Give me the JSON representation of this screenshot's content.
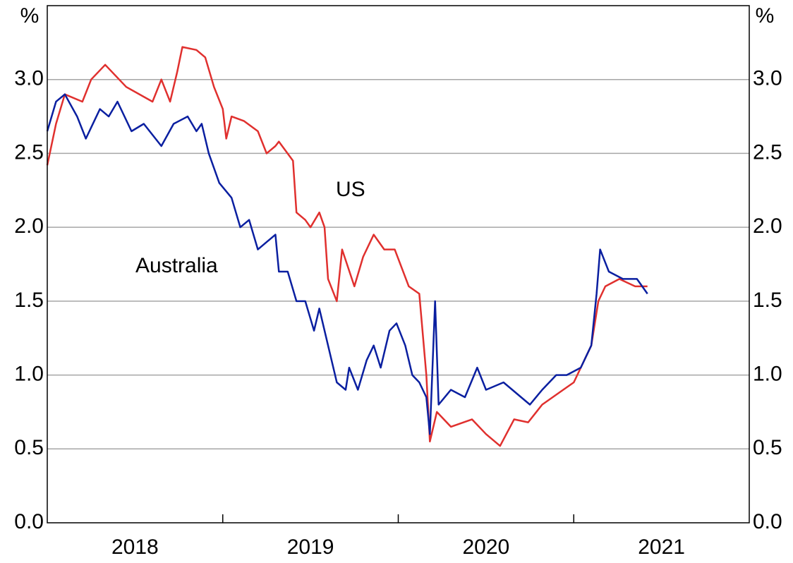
{
  "chart_data": {
    "type": "line",
    "y_unit": "%",
    "y2_unit": "%",
    "annotations": [
      "US",
      "Australia"
    ],
    "categories": [
      "2018",
      "2019",
      "2020",
      "2021"
    ],
    "xlim": [
      2018,
      2022
    ],
    "ylim": [
      0,
      3.5
    ],
    "yticks": [
      {
        "value": 0,
        "label": "0.0"
      },
      0.5,
      {
        "value": 1,
        "label": "1.0"
      },
      1.5,
      {
        "value": 2,
        "label": "2.0"
      },
      2.5,
      {
        "value": 3,
        "label": "3.0"
      }
    ],
    "y2lim": [
      0,
      3.5
    ],
    "y2ticks": [
      {
        "value": 0,
        "label": "0.0"
      },
      0.5,
      {
        "value": 1,
        "label": "1.0"
      },
      1.5,
      {
        "value": 2,
        "label": "2.0"
      },
      2.5,
      {
        "value": 3,
        "label": "3.0"
      }
    ],
    "grid": true,
    "series": [
      {
        "name": "US",
        "color": "#e0302e",
        "x": [
          2018.0,
          2018.05,
          2018.1,
          2018.2,
          2018.25,
          2018.33,
          2018.45,
          2018.6,
          2018.65,
          2018.7,
          2018.74,
          2018.77,
          2018.85,
          2018.9,
          2018.95,
          2019.0,
          2019.02,
          2019.05,
          2019.12,
          2019.2,
          2019.25,
          2019.3,
          2019.32,
          2019.4,
          2019.42,
          2019.47,
          2019.5,
          2019.55,
          2019.58,
          2019.6,
          2019.65,
          2019.68,
          2019.75,
          2019.8,
          2019.86,
          2019.92,
          2019.98,
          2020.06,
          2020.12,
          2020.16,
          2020.18,
          2020.22,
          2020.3,
          2020.42,
          2020.5,
          2020.58,
          2020.66,
          2020.74,
          2020.82,
          2020.94,
          2021.0,
          2021.06,
          2021.1,
          2021.14,
          2021.18,
          2021.26,
          2021.35,
          2021.42
        ],
        "values": [
          2.42,
          2.7,
          2.9,
          2.85,
          3.0,
          3.1,
          2.95,
          2.85,
          3.0,
          2.85,
          3.05,
          3.22,
          3.2,
          3.15,
          2.95,
          2.8,
          2.6,
          2.75,
          2.72,
          2.65,
          2.5,
          2.55,
          2.58,
          2.45,
          2.1,
          2.05,
          2.0,
          2.1,
          2.0,
          1.65,
          1.5,
          1.85,
          1.6,
          1.8,
          1.95,
          1.85,
          1.85,
          1.6,
          1.55,
          1.0,
          0.55,
          0.75,
          0.65,
          0.7,
          0.6,
          0.52,
          0.7,
          0.68,
          0.8,
          0.9,
          0.95,
          1.1,
          1.2,
          1.5,
          1.6,
          1.65,
          1.6,
          1.6
        ]
      },
      {
        "name": "Australia",
        "color": "#0a1fa0",
        "x": [
          2018.0,
          2018.05,
          2018.1,
          2018.17,
          2018.22,
          2018.3,
          2018.35,
          2018.4,
          2018.48,
          2018.55,
          2018.65,
          2018.72,
          2018.8,
          2018.85,
          2018.88,
          2018.92,
          2018.98,
          2019.05,
          2019.1,
          2019.15,
          2019.2,
          2019.25,
          2019.3,
          2019.32,
          2019.37,
          2019.42,
          2019.47,
          2019.52,
          2019.55,
          2019.6,
          2019.65,
          2019.7,
          2019.72,
          2019.77,
          2019.82,
          2019.86,
          2019.9,
          2019.95,
          2019.99,
          2020.04,
          2020.08,
          2020.12,
          2020.16,
          2020.18,
          2020.21,
          2020.23,
          2020.3,
          2020.38,
          2020.45,
          2020.5,
          2020.6,
          2020.7,
          2020.75,
          2020.82,
          2020.9,
          2020.96,
          2021.04,
          2021.1,
          2021.13,
          2021.15,
          2021.2,
          2021.28,
          2021.36,
          2021.42
        ],
        "values": [
          2.65,
          2.85,
          2.9,
          2.75,
          2.6,
          2.8,
          2.75,
          2.85,
          2.65,
          2.7,
          2.55,
          2.7,
          2.75,
          2.65,
          2.7,
          2.5,
          2.3,
          2.2,
          2.0,
          2.05,
          1.85,
          1.9,
          1.95,
          1.7,
          1.7,
          1.5,
          1.5,
          1.3,
          1.45,
          1.2,
          0.95,
          0.9,
          1.05,
          0.9,
          1.1,
          1.2,
          1.05,
          1.3,
          1.35,
          1.2,
          1.0,
          0.95,
          0.85,
          0.6,
          1.5,
          0.8,
          0.9,
          0.85,
          1.05,
          0.9,
          0.95,
          0.85,
          0.8,
          0.9,
          1.0,
          1.0,
          1.05,
          1.2,
          1.55,
          1.85,
          1.7,
          1.65,
          1.65,
          1.55
        ]
      }
    ]
  }
}
